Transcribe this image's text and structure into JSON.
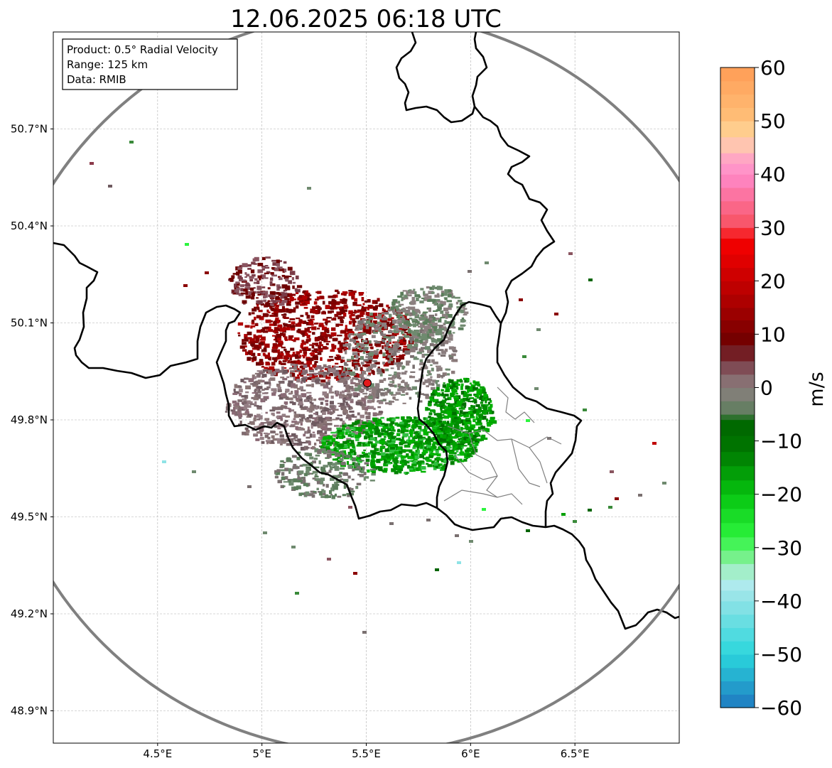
{
  "title": "12.06.2025 06:18 UTC",
  "info_box": {
    "product": "Product: 0.5° Radial Velocity",
    "range": "Range: 125 km",
    "data": "Data: RMIB"
  },
  "map": {
    "lon_range": [
      4.0,
      7.0
    ],
    "lat_range": [
      48.8,
      51.0
    ],
    "lon_ticks": [
      {
        "value": 4.5,
        "label": "4.5°E"
      },
      {
        "value": 5.0,
        "label": "5°E"
      },
      {
        "value": 5.5,
        "label": "5.5°E"
      },
      {
        "value": 6.0,
        "label": "6°E"
      },
      {
        "value": 6.5,
        "label": "6.5°E"
      }
    ],
    "lat_ticks": [
      {
        "value": 50.7,
        "label": "50.7°N"
      },
      {
        "value": 50.4,
        "label": "50.4°N"
      },
      {
        "value": 50.1,
        "label": "50.1°N"
      },
      {
        "value": 49.8,
        "label": "49.8°N"
      },
      {
        "value": 49.5,
        "label": "49.5°N"
      },
      {
        "value": 49.2,
        "label": "49.2°N"
      },
      {
        "value": 48.9,
        "label": "48.9°N"
      }
    ],
    "radar_site": {
      "lon": 5.505,
      "lat": 49.914
    },
    "range_ring_color": "#808080",
    "radar_marker_color": "#e41a1c",
    "gridlines": true
  },
  "colorbar": {
    "label": "m/s",
    "min": -60,
    "max": 60,
    "ticks": [
      "60",
      "50",
      "40",
      "30",
      "20",
      "10",
      "0",
      "−10",
      "−20",
      "−30",
      "−40",
      "−50",
      "−60"
    ],
    "colors": [
      {
        "value": -60,
        "color": "#1f78c0"
      },
      {
        "value": -50,
        "color": "#2ad6dc"
      },
      {
        "value": -40,
        "color": "#8fe3e6"
      },
      {
        "value": -36,
        "color": "#b8ecef"
      },
      {
        "value": -33,
        "color": "#8ef0a5"
      },
      {
        "value": -28,
        "color": "#2cf43e"
      },
      {
        "value": -20,
        "color": "#06c40f"
      },
      {
        "value": -12,
        "color": "#007800"
      },
      {
        "value": -6,
        "color": "#006400"
      },
      {
        "value": -5,
        "color": "#5b7d5b"
      },
      {
        "value": 0,
        "color": "#8c8080"
      },
      {
        "value": 5,
        "color": "#7a3b47"
      },
      {
        "value": 8,
        "color": "#6b0000"
      },
      {
        "value": 15,
        "color": "#a40000"
      },
      {
        "value": 25,
        "color": "#e80000"
      },
      {
        "value": 28,
        "color": "#f50000"
      },
      {
        "value": 30,
        "color": "#f7505e"
      },
      {
        "value": 40,
        "color": "#ff8acb"
      },
      {
        "value": 44,
        "color": "#ffb0c0"
      },
      {
        "value": 47,
        "color": "#ffd9a0"
      },
      {
        "value": 50,
        "color": "#ffc07a"
      },
      {
        "value": 60,
        "color": "#ff9d55"
      }
    ]
  }
}
